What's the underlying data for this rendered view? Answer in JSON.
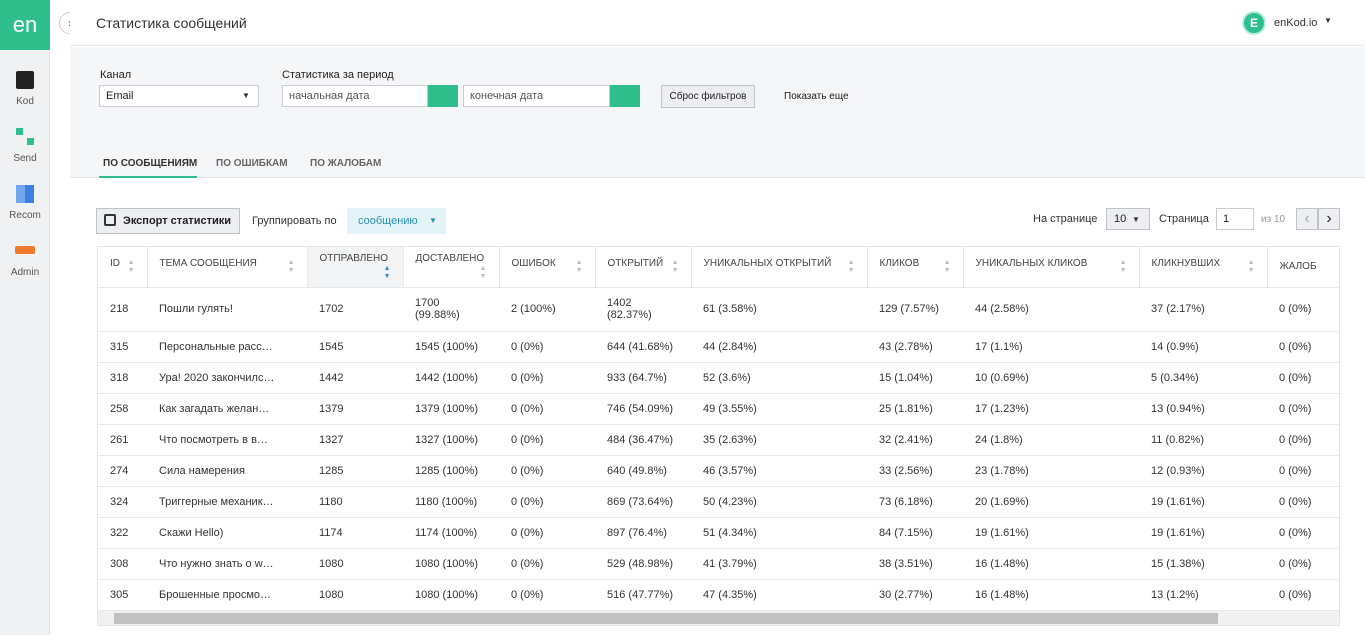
{
  "sidebar": {
    "logo": "en",
    "items": [
      "Kod",
      "Send",
      "Recom",
      "Admin"
    ]
  },
  "header": {
    "title": "Статистика сообщений",
    "avatar": "E",
    "user": "enKod.io"
  },
  "filters": {
    "channel_label": "Канал",
    "channel_value": "Email",
    "period_label": "Статистика за период",
    "start_placeholder": "начальная дата",
    "end_placeholder": "конечная дата",
    "reset": "Сброс фильтров",
    "more": "Показать еще"
  },
  "tabs": [
    "ПО СООБЩЕНИЯМ",
    "ПО ОШИБКАМ",
    "ПО ЖАЛОБАМ"
  ],
  "toolbar": {
    "export": "Экспорт статистики",
    "group_label": "Группировать по",
    "group_value": "сообщению",
    "per_page_label": "На странице",
    "per_page": "10",
    "page_label": "Страница",
    "page": "1",
    "page_total": "из 10"
  },
  "table": {
    "columns": [
      "ID",
      "ТЕМА СООБЩЕНИЯ",
      "ОТПРАВЛЕНО",
      "ДОСТАВЛЕНО",
      "ОШИБОК",
      "ОТКРЫТИЙ",
      "УНИКАЛЬНЫХ ОТКРЫТИЙ",
      "КЛИКОВ",
      "УНИКАЛЬНЫХ КЛИКОВ",
      "КЛИКНУВШИХ",
      "ЖАЛОБ"
    ],
    "rows": [
      [
        "218",
        "Пошли гулять!",
        "1702",
        "1700 (99.88%)",
        "2 (100%)",
        "1402 (82.37%)",
        "61 (3.58%)",
        "129 (7.57%)",
        "44 (2.58%)",
        "37 (2.17%)",
        "0 (0%)"
      ],
      [
        "315",
        "Персональные расс…",
        "1545",
        "1545 (100%)",
        "0 (0%)",
        "644 (41.68%)",
        "44 (2.84%)",
        "43 (2.78%)",
        "17 (1.1%)",
        "14 (0.9%)",
        "0 (0%)"
      ],
      [
        "318",
        "Ура! 2020 закончилс…",
        "1442",
        "1442 (100%)",
        "0 (0%)",
        "933 (64.7%)",
        "52 (3.6%)",
        "15 (1.04%)",
        "10 (0.69%)",
        "5 (0.34%)",
        "0 (0%)"
      ],
      [
        "258",
        "Как загадать желан…",
        "1379",
        "1379 (100%)",
        "0 (0%)",
        "746 (54.09%)",
        "49 (3.55%)",
        "25 (1.81%)",
        "17 (1.23%)",
        "13 (0.94%)",
        "0 (0%)"
      ],
      [
        "261",
        "Что посмотреть в в…",
        "1327",
        "1327 (100%)",
        "0 (0%)",
        "484 (36.47%)",
        "35 (2.63%)",
        "32 (2.41%)",
        "24 (1.8%)",
        "11 (0.82%)",
        "0 (0%)"
      ],
      [
        "274",
        "Сила намерения",
        "1285",
        "1285 (100%)",
        "0 (0%)",
        "640 (49.8%)",
        "46 (3.57%)",
        "33 (2.56%)",
        "23 (1.78%)",
        "12 (0.93%)",
        "0 (0%)"
      ],
      [
        "324",
        "Триггерные механик…",
        "1180",
        "1180 (100%)",
        "0 (0%)",
        "869 (73.64%)",
        "50 (4.23%)",
        "73 (6.18%)",
        "20 (1.69%)",
        "19 (1.61%)",
        "0 (0%)"
      ],
      [
        "322",
        "Скажи Hello)",
        "1174",
        "1174 (100%)",
        "0 (0%)",
        "897 (76.4%)",
        "51 (4.34%)",
        "84 (7.15%)",
        "19 (1.61%)",
        "19 (1.61%)",
        "0 (0%)"
      ],
      [
        "308",
        "Что нужно знать о w…",
        "1080",
        "1080 (100%)",
        "0 (0%)",
        "529 (48.98%)",
        "41 (3.79%)",
        "38 (3.51%)",
        "16 (1.48%)",
        "15 (1.38%)",
        "0 (0%)"
      ],
      [
        "305",
        "Брошенные просмо…",
        "1080",
        "1080 (100%)",
        "0 (0%)",
        "516 (47.77%)",
        "47 (4.35%)",
        "30 (2.77%)",
        "16 (1.48%)",
        "13 (1.2%)",
        "0 (0%)"
      ]
    ]
  }
}
